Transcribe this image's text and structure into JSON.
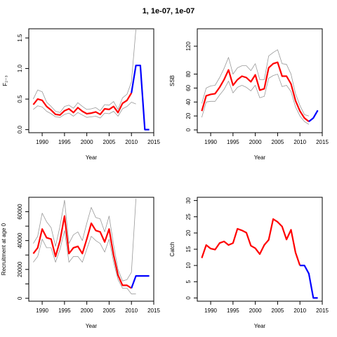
{
  "figure_title": "1, 1e-07, 1e-07",
  "colors": {
    "estimate": "#ff0000",
    "projection": "#0000ff",
    "interval": "#999999",
    "axis": "#000000"
  },
  "chart_data": [
    {
      "type": "line",
      "title": "",
      "xlabel": "Year",
      "ylabel": "F₂₋₃",
      "xlim": [
        1987,
        2015
      ],
      "ylim": [
        -0.05,
        1.65
      ],
      "xticks": [
        1990,
        1995,
        2000,
        2005,
        2010,
        2015
      ],
      "xtick_labels": [
        "1990",
        "1995",
        "2000",
        "2005",
        "2010",
        "2015"
      ],
      "yticks": [
        0,
        0.5,
        1,
        1.5
      ],
      "ytick_labels": [
        "0.0",
        "0.5",
        "1.0",
        "1.5"
      ],
      "series": [
        {
          "role": "upper",
          "x": [
            1988,
            1989,
            1990,
            1991,
            1992,
            1993,
            1994,
            1995,
            1996,
            1997,
            1998,
            1999,
            2000,
            2001,
            2002,
            2003,
            2004,
            2005,
            2006,
            2007,
            2008,
            2009,
            2010,
            2011
          ],
          "y": [
            0.5,
            0.65,
            0.62,
            0.45,
            0.38,
            0.3,
            0.28,
            0.38,
            0.4,
            0.35,
            0.44,
            0.38,
            0.33,
            0.34,
            0.36,
            0.31,
            0.41,
            0.4,
            0.46,
            0.33,
            0.52,
            0.58,
            0.78,
            1.65
          ]
        },
        {
          "role": "estimate",
          "x": [
            1988,
            1989,
            1990,
            1991,
            1992,
            1993,
            1994,
            1995,
            1996,
            1997,
            1998,
            1999,
            2000,
            2001,
            2002,
            2003,
            2004,
            2005,
            2006,
            2007,
            2008,
            2009,
            2010
          ],
          "y": [
            0.41,
            0.5,
            0.48,
            0.38,
            0.32,
            0.25,
            0.24,
            0.31,
            0.34,
            0.28,
            0.36,
            0.3,
            0.26,
            0.27,
            0.29,
            0.25,
            0.34,
            0.33,
            0.38,
            0.28,
            0.43,
            0.48,
            0.6
          ]
        },
        {
          "role": "lower",
          "x": [
            1988,
            1989,
            1990,
            1991,
            1992,
            1993,
            1994,
            1995,
            1996,
            1997,
            1998,
            1999,
            2000,
            2001,
            2002,
            2003,
            2004,
            2005,
            2006,
            2007,
            2008,
            2009,
            2010,
            2011
          ],
          "y": [
            0.33,
            0.39,
            0.37,
            0.3,
            0.26,
            0.21,
            0.2,
            0.25,
            0.27,
            0.22,
            0.28,
            0.24,
            0.2,
            0.21,
            0.22,
            0.19,
            0.27,
            0.26,
            0.3,
            0.22,
            0.34,
            0.38,
            0.45,
            0.42
          ]
        },
        {
          "role": "projection",
          "x": [
            2010,
            2011,
            2012,
            2013,
            2014
          ],
          "y": [
            0.6,
            1.05,
            1.05,
            0,
            0
          ]
        }
      ]
    },
    {
      "type": "line",
      "title": "",
      "xlabel": "Year",
      "ylabel": "SSB",
      "xlim": [
        1987,
        2015
      ],
      "ylim": [
        -4,
        145
      ],
      "xticks": [
        1990,
        1995,
        2000,
        2005,
        2010,
        2015
      ],
      "xtick_labels": [
        "1990",
        "1995",
        "2000",
        "2005",
        "2010",
        "2015"
      ],
      "yticks": [
        0,
        20,
        40,
        60,
        80,
        120
      ],
      "ytick_labels": [
        "0",
        "20",
        "40",
        "60",
        "80",
        "120"
      ],
      "series": [
        {
          "role": "upper",
          "x": [
            1988,
            1989,
            1990,
            1991,
            1992,
            1993,
            1994,
            1995,
            1996,
            1997,
            1998,
            1999,
            2000,
            2001,
            2002,
            2003,
            2004,
            2005,
            2006,
            2007,
            2008,
            2009,
            2010,
            2011,
            2012
          ],
          "y": [
            38,
            60,
            63,
            64,
            75,
            88,
            104,
            80,
            89,
            92,
            92,
            85,
            95,
            72,
            72,
            106,
            111,
            115,
            95,
            94,
            80,
            52,
            35,
            22,
            20
          ]
        },
        {
          "role": "estimate",
          "x": [
            1988,
            1989,
            1990,
            1991,
            1992,
            1993,
            1994,
            1995,
            1996,
            1997,
            1998,
            1999,
            2000,
            2001,
            2002,
            2003,
            2004,
            2005,
            2006,
            2007,
            2008,
            2009,
            2010,
            2011,
            2012
          ],
          "y": [
            27,
            49,
            51,
            52,
            61,
            72,
            86,
            64,
            72,
            77,
            75,
            69,
            79,
            57,
            59,
            89,
            95,
            97,
            77,
            77,
            66,
            42,
            27,
            17,
            12
          ]
        },
        {
          "role": "lower",
          "x": [
            1988,
            1989,
            1990,
            1991,
            1992,
            1993,
            1994,
            1995,
            1996,
            1997,
            1998,
            1999,
            2000,
            2001,
            2002,
            2003,
            2004,
            2005,
            2006,
            2007,
            2008,
            2009,
            2010,
            2011,
            2012
          ],
          "y": [
            18,
            40,
            41,
            41,
            50,
            58,
            70,
            53,
            61,
            64,
            61,
            56,
            64,
            46,
            48,
            74,
            78,
            80,
            62,
            64,
            55,
            33,
            20,
            12,
            8
          ]
        },
        {
          "role": "projection",
          "x": [
            2012,
            2013,
            2014
          ],
          "y": [
            12,
            17,
            28
          ]
        }
      ]
    },
    {
      "type": "line",
      "title": "",
      "xlabel": "Year",
      "ylabel": "Recruitment at age 0",
      "xlim": [
        1987,
        2015
      ],
      "ylim": [
        -2000,
        70000
      ],
      "xticks": [
        1990,
        1995,
        2000,
        2005,
        2010,
        2015
      ],
      "xtick_labels": [
        "1990",
        "1995",
        "2000",
        "2005",
        "2010",
        "2015"
      ],
      "yticks": [
        0,
        10000,
        20000,
        30000,
        40000,
        50000,
        60000
      ],
      "ytick_labels": [
        "0",
        "",
        "20000",
        "",
        "40000",
        "",
        "60000"
      ],
      "series": [
        {
          "role": "upper",
          "x": [
            1988,
            1989,
            1990,
            1991,
            1992,
            1993,
            1994,
            1995,
            1996,
            1997,
            1998,
            1999,
            2000,
            2001,
            2002,
            2003,
            2004,
            2005,
            2006,
            2007,
            2008,
            2009,
            2010,
            2011
          ],
          "y": [
            38000,
            43000,
            59000,
            53000,
            49000,
            36000,
            50000,
            68000,
            38000,
            44000,
            46000,
            40000,
            52000,
            63000,
            56000,
            55000,
            46000,
            57000,
            37000,
            20000,
            12000,
            13000,
            18000,
            69000
          ]
        },
        {
          "role": "estimate",
          "x": [
            1988,
            1989,
            1990,
            1991,
            1992,
            1993,
            1994,
            1995,
            1996,
            1997,
            1998,
            1999,
            2000,
            2001,
            2002,
            2003,
            2004,
            2005,
            2006,
            2007,
            2008,
            2009,
            2010
          ],
          "y": [
            31000,
            35000,
            48000,
            42000,
            41000,
            29000,
            40000,
            57000,
            31000,
            35000,
            36000,
            31000,
            41000,
            52000,
            47000,
            46000,
            39000,
            48000,
            30000,
            16000,
            9000,
            9000,
            7000
          ]
        },
        {
          "role": "lower",
          "x": [
            1988,
            1989,
            1990,
            1991,
            1992,
            1993,
            1994,
            1995,
            1996,
            1997,
            1998,
            1999,
            2000,
            2001,
            2002,
            2003,
            2004,
            2005,
            2006,
            2007,
            2008,
            2009,
            2010,
            2011
          ],
          "y": [
            25000,
            29000,
            41000,
            35000,
            35000,
            25000,
            34000,
            47000,
            25000,
            29000,
            29000,
            25000,
            34000,
            43000,
            40000,
            38000,
            32000,
            41000,
            25000,
            13000,
            7000,
            7000,
            3000,
            3000
          ]
        },
        {
          "role": "projection",
          "x": [
            2010,
            2011,
            2012,
            2013,
            2014
          ],
          "y": [
            7000,
            15500,
            15500,
            15500,
            15500
          ]
        }
      ]
    },
    {
      "type": "line",
      "title": "",
      "xlabel": "Year",
      "ylabel": "Catch",
      "xlim": [
        1987,
        2015
      ],
      "ylim": [
        -1,
        31
      ],
      "xticks": [
        1990,
        1995,
        2000,
        2005,
        2010,
        2015
      ],
      "xtick_labels": [
        "1990",
        "1995",
        "2000",
        "2005",
        "2010",
        "2015"
      ],
      "yticks": [
        0,
        5,
        10,
        15,
        20,
        25,
        30
      ],
      "ytick_labels": [
        "0",
        "5",
        "10",
        "15",
        "20",
        "25",
        "30"
      ],
      "series": [
        {
          "role": "estimate",
          "x": [
            1988,
            1989,
            1990,
            1991,
            1992,
            1993,
            1994,
            1995,
            1996,
            1997,
            1998,
            1999,
            2000,
            2001,
            2002,
            2003,
            2004,
            2005,
            2006,
            2007,
            2008,
            2009,
            2010
          ],
          "y": [
            12.3,
            16.3,
            15.2,
            14.9,
            16.9,
            17.4,
            16.3,
            16.9,
            21.3,
            20.8,
            20.1,
            16.1,
            15.3,
            13.5,
            16.3,
            17.9,
            24.3,
            23.4,
            22,
            18,
            21,
            14,
            10
          ]
        },
        {
          "role": "projection",
          "x": [
            2010,
            2011,
            2012,
            2013,
            2014
          ],
          "y": [
            10,
            10,
            7.5,
            0,
            0
          ]
        }
      ]
    }
  ]
}
